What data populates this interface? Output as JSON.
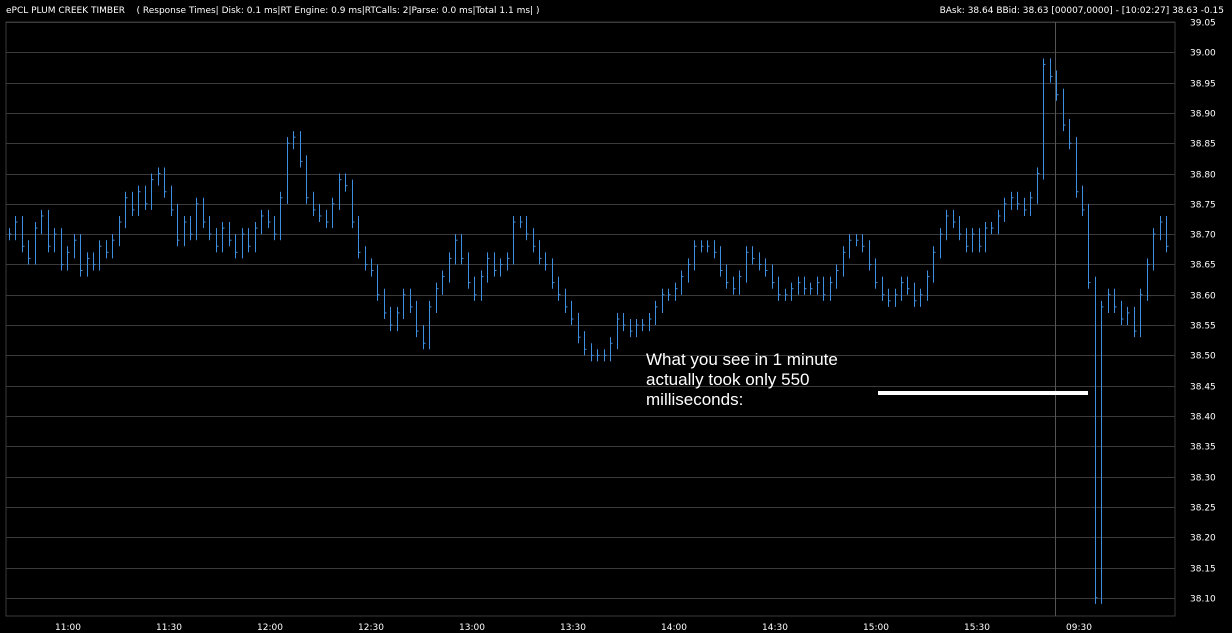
{
  "header": {
    "symbol": "ePCL PLUM CREEK TIMBER",
    "stats": "( Response Times| Disk: 0.1 ms|RT Engine: 0.9 ms|RTCalls: 2|Parse: 0.0 ms|Total 1.1 ms| )",
    "quote": "BAsk: 38.64  BBid: 38.63  [00007,0000]  -  [10:02:27]  38.63  -0.15"
  },
  "annotation": {
    "text": "What you see in 1 minute actually took only 550 milliseconds:"
  },
  "colors": {
    "background": "#000000",
    "grid": "#3a3a3a",
    "price_bars": "#3f8fe0",
    "text": "#ffffff"
  },
  "chart_data": {
    "type": "line",
    "title": "",
    "xlabel": "",
    "ylabel": "",
    "ylim": [
      38.07,
      39.05
    ],
    "yticks": [
      "38.10",
      "38.15",
      "38.20",
      "38.25",
      "38.30",
      "38.35",
      "38.40",
      "38.45",
      "38.50",
      "38.55",
      "38.60",
      "38.65",
      "38.70",
      "38.75",
      "38.80",
      "38.85",
      "38.90",
      "38.95",
      "39.00",
      "39.05"
    ],
    "xticks": [
      "11:00",
      "11:30",
      "12:00",
      "12:30",
      "13:00",
      "13:30",
      "14:00",
      "14:30",
      "15:00",
      "15:30",
      "09:30"
    ],
    "grid": true,
    "legend": "none",
    "session_break_at": "09:30",
    "series": [
      {
        "values": [
          38.7,
          38.72,
          38.68,
          38.66,
          38.71,
          38.73,
          38.68,
          38.7,
          38.65,
          38.67,
          38.69,
          38.64,
          38.66,
          38.65,
          38.68,
          38.67,
          38.69,
          38.72,
          38.76,
          38.74,
          38.77,
          38.75,
          38.79,
          38.8,
          38.77,
          38.74,
          38.69,
          38.72,
          38.7,
          38.75,
          38.72,
          38.7,
          38.68,
          38.71,
          38.69,
          38.67,
          38.7,
          38.68,
          38.71,
          38.73,
          38.72,
          38.7,
          38.76,
          38.85,
          38.86,
          38.82,
          38.76,
          38.74,
          38.73,
          38.72,
          38.75,
          38.79,
          38.78,
          38.72,
          38.67,
          38.65,
          38.64,
          38.6,
          38.57,
          38.55,
          38.57,
          38.6,
          38.58,
          38.54,
          38.52,
          38.58,
          38.61,
          38.63,
          38.66,
          38.69,
          38.66,
          38.62,
          38.6,
          38.63,
          38.66,
          38.64,
          38.65,
          38.66,
          38.72,
          38.72,
          38.7,
          38.68,
          38.66,
          38.65,
          38.62,
          38.6,
          38.58,
          38.56,
          38.53,
          38.51,
          38.5,
          38.5,
          38.5,
          38.52,
          38.56,
          38.55,
          38.54,
          38.55,
          38.55,
          38.56,
          38.58,
          38.6,
          38.6,
          38.61,
          38.63,
          38.65,
          38.68,
          38.68,
          38.68,
          38.67,
          38.64,
          38.62,
          38.61,
          38.63,
          38.67,
          38.66,
          38.65,
          38.64,
          38.62,
          38.6,
          38.6,
          38.61,
          38.62,
          38.61,
          38.61,
          38.62,
          38.6,
          38.62,
          38.64,
          38.67,
          38.69,
          38.69,
          38.68,
          38.65,
          38.62,
          38.6,
          38.59,
          38.6,
          38.62,
          38.61,
          38.59,
          38.6,
          38.63,
          38.67,
          38.7,
          38.73,
          38.72,
          38.7,
          38.68,
          38.7,
          38.68,
          38.71,
          38.71,
          38.73,
          38.75,
          38.76,
          38.75,
          38.74,
          38.76,
          38.8,
          38.98,
          38.96,
          38.93,
          38.88,
          38.85,
          38.77,
          38.74,
          38.62,
          38.1,
          38.58,
          38.6,
          38.58,
          38.56,
          38.57,
          38.54,
          38.6,
          38.65,
          38.7,
          38.72,
          38.68
        ]
      }
    ]
  }
}
